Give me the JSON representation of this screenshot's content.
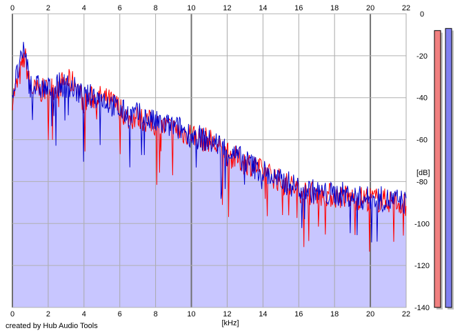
{
  "credit": "created by Hub Audio Tools",
  "chart_data": {
    "type": "area",
    "xlabel": "[kHz]",
    "ylabel": "[dB]",
    "xlim": [
      0,
      22
    ],
    "ylim": [
      -140,
      0
    ],
    "x_ticks": [
      0,
      2,
      4,
      6,
      8,
      10,
      12,
      14,
      16,
      18,
      20,
      22
    ],
    "y_ticks": [
      0,
      -20,
      -40,
      -60,
      -80,
      -100,
      -120,
      -140
    ],
    "x_tick_labels": [
      "0",
      "2",
      "4",
      "6",
      "8",
      "10",
      "12",
      "14",
      "16",
      "18",
      "20",
      "22"
    ],
    "y_tick_labels": [
      "0",
      "-20",
      "-40",
      "-60",
      "-80",
      "-100",
      "-120",
      "-140"
    ],
    "grid": true,
    "colors": {
      "fill": "#c8c6ff",
      "left": "#ff0000",
      "right": "#0000cc",
      "left_meter": "#f08080",
      "right_meter": "#8080f0"
    },
    "series": [
      {
        "key": "left",
        "x": [
          0,
          0.3,
          0.7,
          1,
          1.5,
          2,
          2.5,
          3,
          3.5,
          4,
          4.5,
          5,
          5.5,
          6,
          6.5,
          7,
          7.5,
          8,
          8.5,
          9,
          9.5,
          10,
          10.5,
          11,
          11.5,
          12,
          12.5,
          13,
          13.5,
          14,
          14.5,
          15,
          15.5,
          16,
          16.5,
          17,
          17.5,
          18,
          18.5,
          19,
          19.5,
          20,
          20.5,
          21,
          21.5,
          22
        ],
        "y": [
          -40,
          -33,
          -20,
          -36,
          -37,
          -36,
          -35,
          -32,
          -33,
          -42,
          -40,
          -40,
          -42,
          -45,
          -50,
          -49,
          -51,
          -53,
          -54,
          -55,
          -57,
          -57,
          -60,
          -60,
          -64,
          -67,
          -69,
          -71,
          -72,
          -76,
          -77,
          -80,
          -82,
          -84,
          -85,
          -86,
          -86,
          -87,
          -87,
          -88,
          -88,
          -88,
          -89,
          -89,
          -90,
          -91
        ]
      },
      {
        "key": "right",
        "x": [
          0,
          0.3,
          0.7,
          1,
          1.5,
          2,
          2.5,
          3,
          3.5,
          4,
          4.5,
          5,
          5.5,
          6,
          6.5,
          7,
          7.5,
          8,
          8.5,
          9,
          9.5,
          10,
          10.5,
          11,
          11.5,
          12,
          12.5,
          13,
          13.5,
          14,
          14.5,
          15,
          15.5,
          16,
          16.5,
          17,
          17.5,
          18,
          18.5,
          19,
          19.5,
          20,
          20.5,
          21,
          21.5,
          22
        ],
        "y": [
          -38,
          -28,
          -17,
          -34,
          -35,
          -36,
          -34,
          -34,
          -36,
          -40,
          -39,
          -40,
          -43,
          -46,
          -48,
          -48,
          -50,
          -52,
          -53,
          -54,
          -55,
          -58,
          -59,
          -61,
          -62,
          -65,
          -68,
          -70,
          -73,
          -75,
          -78,
          -80,
          -81,
          -83,
          -84,
          -85,
          -86,
          -86,
          -86,
          -87,
          -88,
          -88,
          -88,
          -89,
          -89,
          -90
        ]
      }
    ],
    "level_meters": [
      {
        "key": "left",
        "value_db": -8
      },
      {
        "key": "right",
        "value_db": -7
      }
    ]
  }
}
